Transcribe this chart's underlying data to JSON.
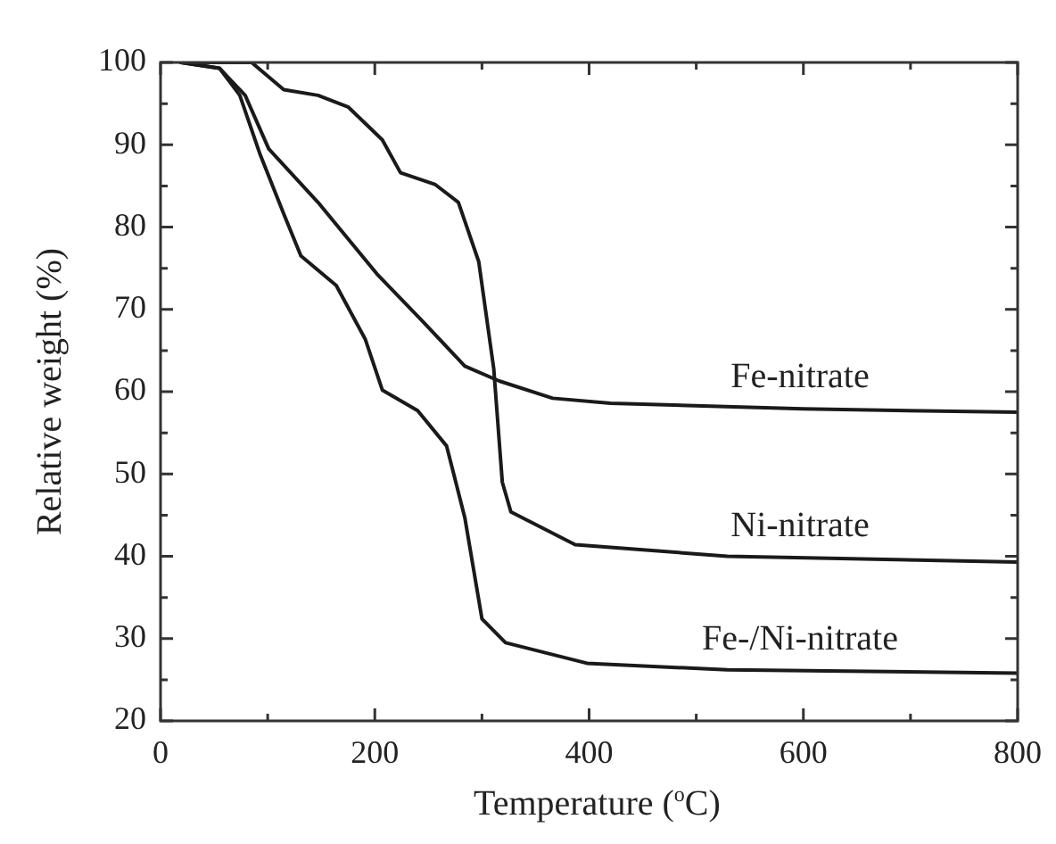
{
  "chart_data": {
    "type": "line",
    "xlabel": "Temperature ($^{o}$C)",
    "ylabel": "Relative weight (%)",
    "xlim": [
      0,
      800
    ],
    "ylim": [
      20,
      100
    ],
    "xticks": [
      0,
      {
        "value": 100,
        "label": null
      },
      200,
      {
        "value": 300,
        "label": null
      },
      400,
      {
        "value": 500,
        "label": null
      },
      600,
      {
        "value": 700,
        "label": null
      },
      800
    ],
    "yticks": [
      20,
      {
        "value": 25,
        "label": null
      },
      30,
      {
        "value": 35,
        "label": null
      },
      40,
      {
        "value": 45,
        "label": null
      },
      50,
      {
        "value": 55,
        "label": null
      },
      60,
      {
        "value": 65,
        "label": null
      },
      70,
      {
        "value": 75,
        "label": null
      },
      80,
      {
        "value": 85,
        "label": null
      },
      90,
      {
        "value": 95,
        "label": null
      },
      100
    ],
    "grid": false,
    "legend": false,
    "marker": "none",
    "line_style": "solid",
    "series": [
      {
        "name": "Fe-nitrate",
        "color": "#1a1a1a",
        "x": [
          19,
          55,
          79,
          101,
          147,
          202,
          245,
          284,
          316,
          366,
          420,
          600,
          800
        ],
        "values": [
          100,
          99.3,
          96,
          89.5,
          83,
          74.3,
          68.5,
          63.1,
          61.3,
          59.2,
          58.6,
          57.9,
          57.5
        ]
      },
      {
        "name": "Ni-nitrate",
        "color": "#1a1a1a",
        "x": [
          19,
          85,
          115,
          147,
          175,
          207,
          224,
          256,
          278,
          297,
          311,
          319,
          327,
          387,
          529,
          800
        ],
        "values": [
          100,
          100,
          96.7,
          96,
          94.6,
          90.6,
          86.6,
          85.2,
          83,
          75.8,
          62.8,
          49,
          45.4,
          41.4,
          40,
          39.3
        ]
      },
      {
        "name": "Fe-/Ni-nitrate",
        "color": "#1a1a1a",
        "x": [
          19,
          55,
          74,
          93,
          115,
          131,
          164,
          191,
          207,
          240,
          267,
          284,
          300,
          322,
          398,
          529,
          800
        ],
        "values": [
          100,
          99.3,
          96,
          88.8,
          81.6,
          76.5,
          72.9,
          66.4,
          60.2,
          57.7,
          53.4,
          44.7,
          32.4,
          29.5,
          27,
          26.2,
          25.8
        ]
      }
    ]
  }
}
